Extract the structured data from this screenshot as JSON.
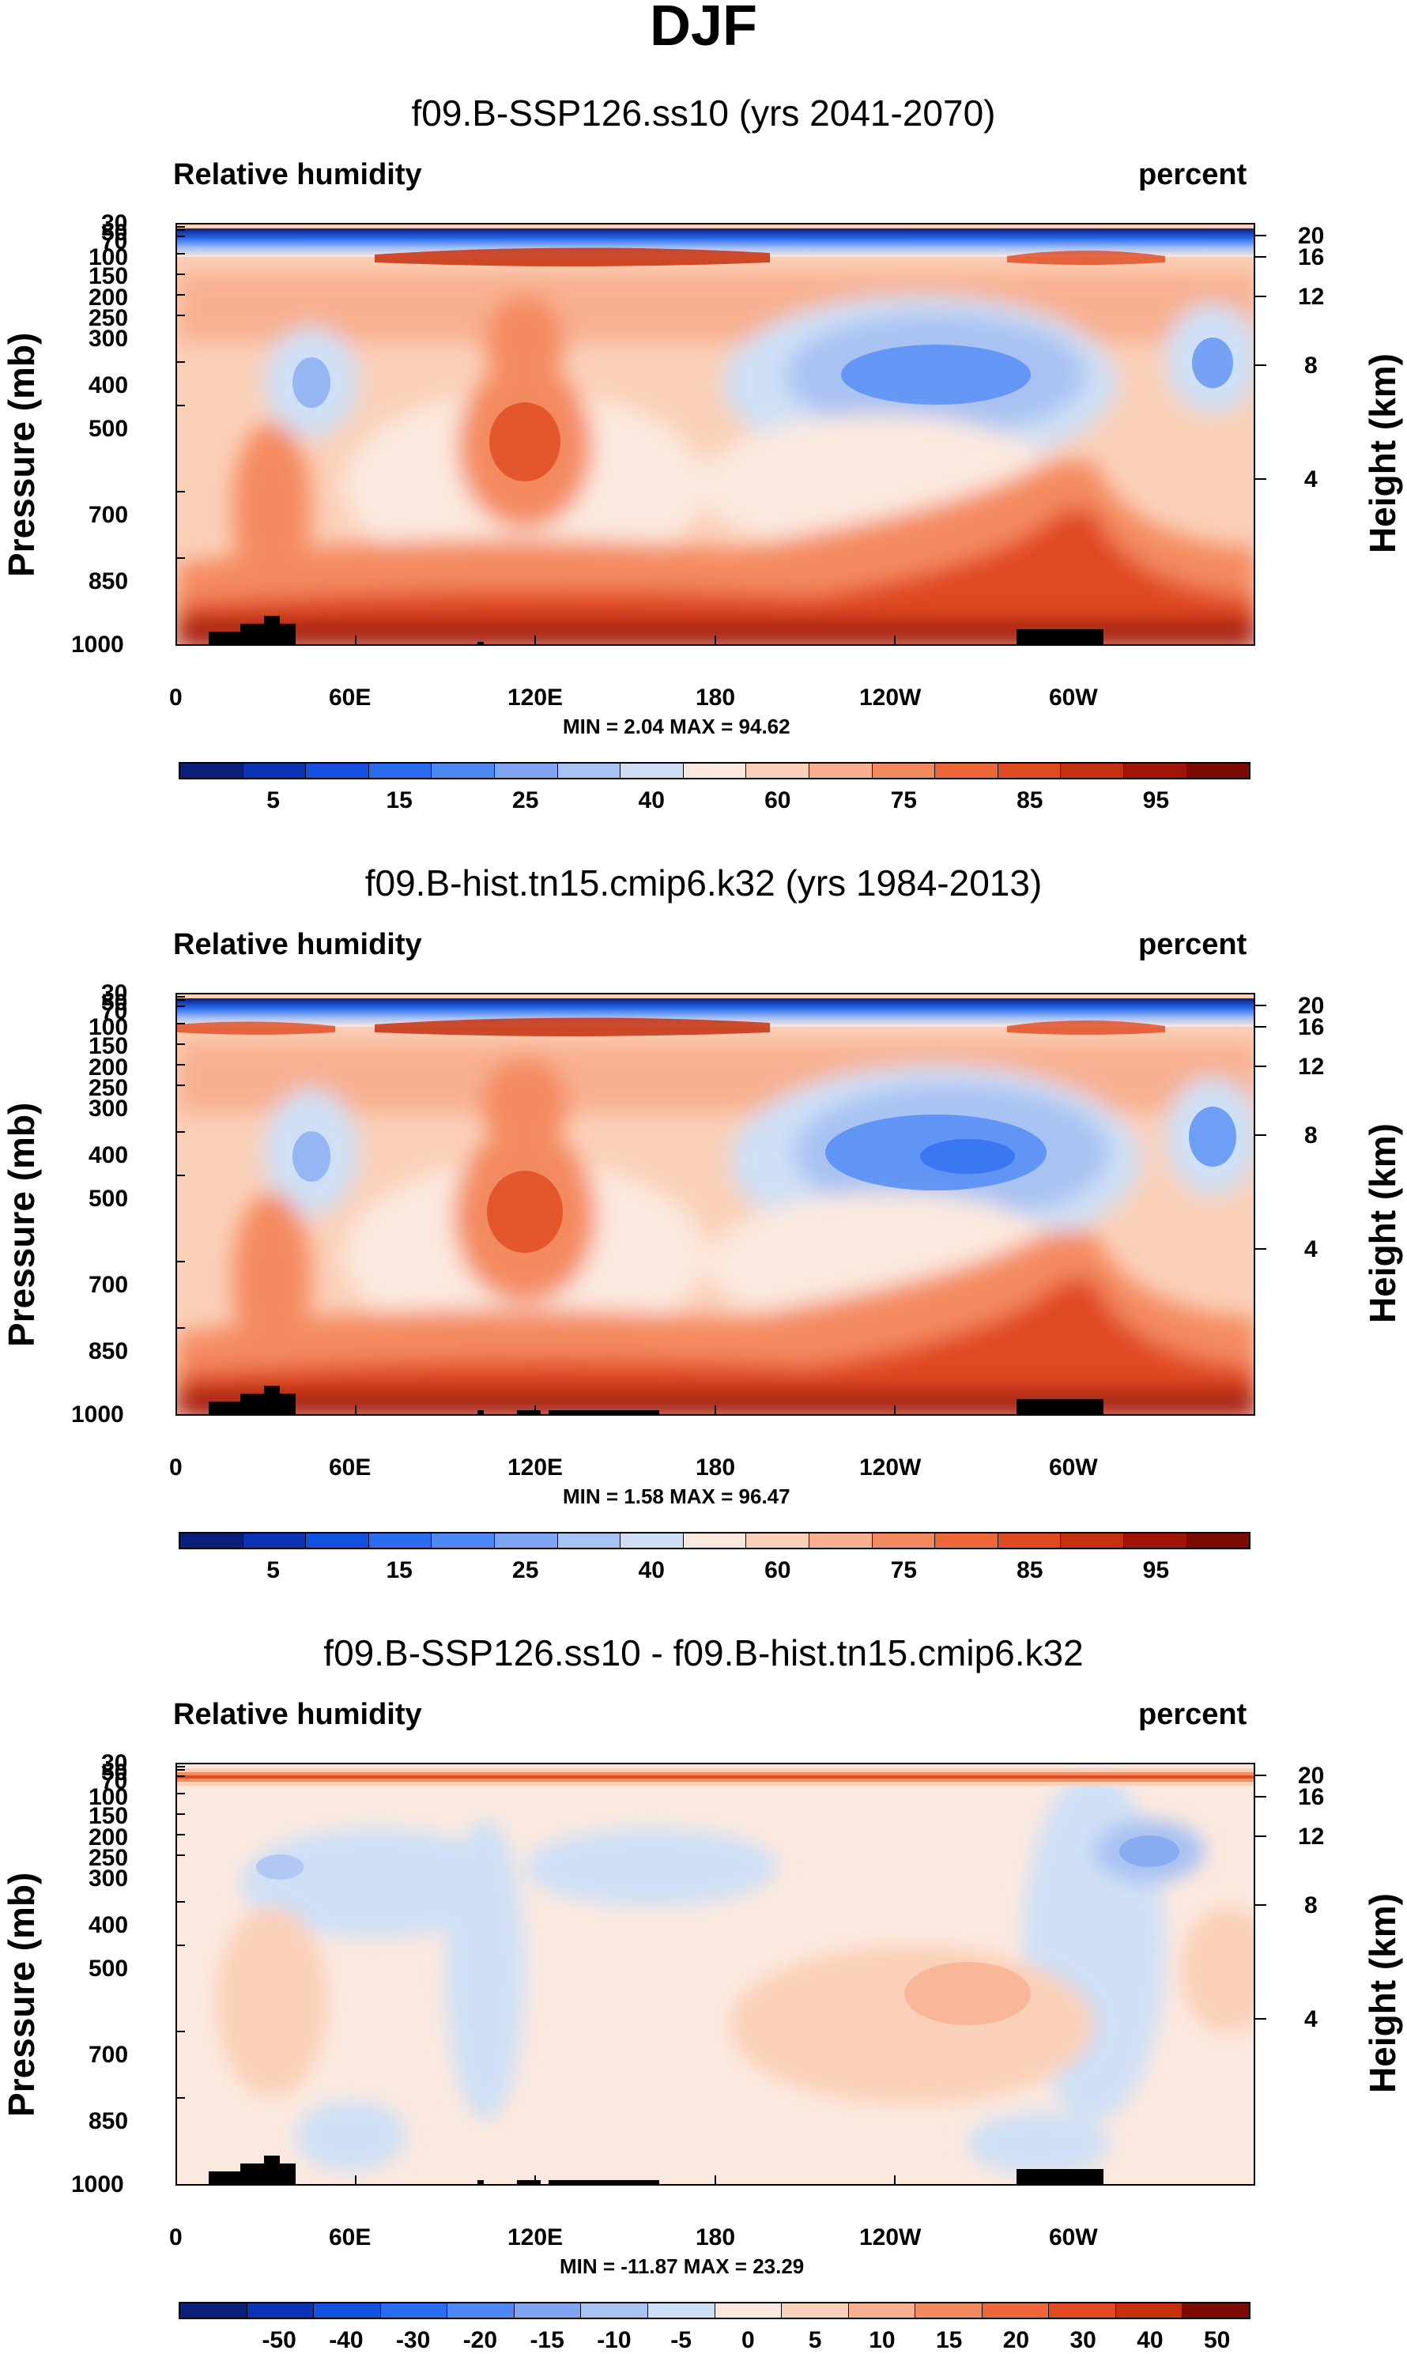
{
  "title": "DJF",
  "panels": [
    {
      "run_title": "f09.B-SSP126.ss10 (yrs 2041-2070)",
      "left_label": "Relative humidity",
      "right_label": "percent",
      "minmax": "MIN =   2.04  MAX =  94.62",
      "kind": "absolute"
    },
    {
      "run_title": "f09.B-hist.tn15.cmip6.k32 (yrs 1984-2013)",
      "left_label": "Relative humidity",
      "right_label": "percent",
      "minmax": "MIN =   1.58  MAX =  96.47",
      "kind": "absolute"
    },
    {
      "run_title": "f09.B-SSP126.ss10 - f09.B-hist.tn15.cmip6.k32",
      "left_label": "Relative humidity",
      "right_label": "percent",
      "minmax": "MIN = -11.87  MAX =  23.29",
      "kind": "difference"
    }
  ],
  "axes": {
    "y_left_title": "Pressure (mb)",
    "y_right_title": "Height (km)",
    "x_ticks": [
      "0",
      "60E",
      "120E",
      "180",
      "120W",
      "60W"
    ],
    "pressure_ticks": [
      "30",
      "50",
      "70",
      "100",
      "150",
      "200",
      "250",
      "300",
      "400",
      "500",
      "700",
      "850",
      "1000"
    ],
    "height_ticks": [
      "20",
      "16",
      "12",
      "8",
      "4"
    ]
  },
  "colorbars": {
    "absolute": {
      "labels": [
        "5",
        "15",
        "25",
        "40",
        "60",
        "75",
        "85",
        "95"
      ],
      "colors": [
        "#0a1f78",
        "#0b33b5",
        "#1450e0",
        "#2a6cf0",
        "#4e88f5",
        "#7ea4f2",
        "#a8c2f2",
        "#cfe0f6",
        "#fbe9df",
        "#fbd0b8",
        "#f8b090",
        "#f48a60",
        "#ed6738",
        "#e04a20",
        "#c5300e",
        "#a01508",
        "#7a0a02"
      ]
    },
    "difference": {
      "labels": [
        "-50",
        "-40",
        "-30",
        "-20",
        "-15",
        "-10",
        "-5",
        "0",
        "5",
        "10",
        "15",
        "20",
        "30",
        "40",
        "50"
      ],
      "colors": [
        "#0a1f78",
        "#0b33b5",
        "#1450e0",
        "#2a6cf0",
        "#4e88f5",
        "#7ea4f2",
        "#a8c2f2",
        "#cfe0f6",
        "#fbe9df",
        "#fbd0b8",
        "#f8b090",
        "#f48a60",
        "#ed6738",
        "#e04a20",
        "#c5300e",
        "#7a0a02"
      ]
    }
  },
  "chart_data": [
    {
      "type": "heatmap",
      "title": "f09.B-SSP126.ss10 (yrs 2041-2070)",
      "variable": "Relative humidity",
      "units": "percent",
      "x": "longitude 0-360",
      "y": "pressure 30-1000 mb",
      "min": 2.04,
      "max": 94.62,
      "levels": [
        5,
        10,
        15,
        20,
        25,
        30,
        40,
        50,
        60,
        65,
        70,
        75,
        80,
        85,
        90,
        95
      ]
    },
    {
      "type": "heatmap",
      "title": "f09.B-hist.tn15.cmip6.k32 (yrs 1984-2013)",
      "variable": "Relative humidity",
      "units": "percent",
      "x": "longitude 0-360",
      "y": "pressure 30-1000 mb",
      "min": 1.58,
      "max": 96.47,
      "levels": [
        5,
        10,
        15,
        20,
        25,
        30,
        40,
        50,
        60,
        65,
        70,
        75,
        80,
        85,
        90,
        95
      ]
    },
    {
      "type": "heatmap",
      "title": "f09.B-SSP126.ss10 - f09.B-hist.tn15.cmip6.k32",
      "variable": "Relative humidity",
      "units": "percent",
      "x": "longitude 0-360",
      "y": "pressure 30-1000 mb",
      "min": -11.87,
      "max": 23.29,
      "levels": [
        -50,
        -40,
        -30,
        -20,
        -15,
        -10,
        -5,
        0,
        5,
        10,
        15,
        20,
        30,
        40,
        50
      ]
    }
  ]
}
